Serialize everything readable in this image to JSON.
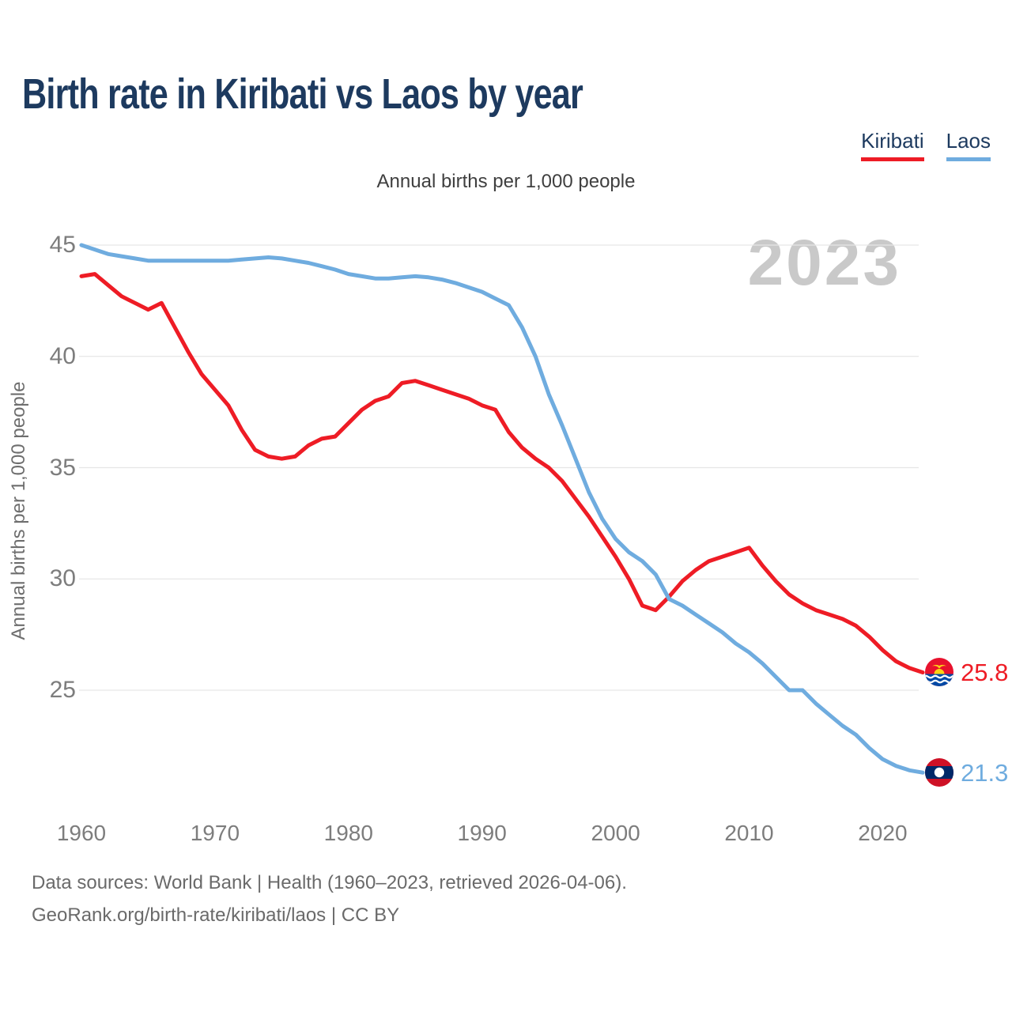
{
  "header": {
    "title": "Birth rate in Kiribati vs Laos by year",
    "legend": [
      {
        "label": "Kiribati",
        "color": "#ee1c25"
      },
      {
        "label": "Laos",
        "color": "#6facdf"
      }
    ]
  },
  "subtitle": "Annual births per 1,000 people",
  "watermark": "2023",
  "footer": {
    "line1": "Data sources: World Bank | Health (1960–2023, retrieved 2026-04-06).",
    "line2": "GeoRank.org/birth-rate/kiribati/laos | CC BY"
  },
  "colors": {
    "kiribati_red": "#ee1c25",
    "laos_blue": "#6facdf",
    "title_navy": "#1d3a5f",
    "tick_gray": "#7d7d7d",
    "grid_gray": "#e6e6e6",
    "watermark_gray": "#c9c9c9"
  },
  "chart_data": {
    "type": "line",
    "title": "Birth rate in Kiribati vs Laos by year",
    "subtitle": "Annual births per 1,000 people",
    "xlabel": "",
    "ylabel": "Annual births per 1,000 people",
    "grid": "horizontal",
    "legend_position": "top-right",
    "watermark": "2023",
    "ylim": [
      20.5,
      46
    ],
    "yticks": [
      25,
      30,
      35,
      40,
      45
    ],
    "xticks": [
      1960,
      1970,
      1980,
      1990,
      2000,
      2010,
      2020
    ],
    "x": [
      1960,
      1961,
      1962,
      1963,
      1964,
      1965,
      1966,
      1967,
      1968,
      1969,
      1970,
      1971,
      1972,
      1973,
      1974,
      1975,
      1976,
      1977,
      1978,
      1979,
      1980,
      1981,
      1982,
      1983,
      1984,
      1985,
      1986,
      1987,
      1988,
      1989,
      1990,
      1991,
      1992,
      1993,
      1994,
      1995,
      1996,
      1997,
      1998,
      1999,
      2000,
      2001,
      2002,
      2003,
      2004,
      2005,
      2006,
      2007,
      2008,
      2009,
      2010,
      2011,
      2012,
      2013,
      2014,
      2015,
      2016,
      2017,
      2018,
      2019,
      2020,
      2021,
      2022,
      2023
    ],
    "series": [
      {
        "name": "Kiribati",
        "color": "#ee1c25",
        "end_label": "25.8",
        "end_value": 25.8,
        "values": [
          43.6,
          43.7,
          43.2,
          42.7,
          42.4,
          42.1,
          42.4,
          41.3,
          40.2,
          39.2,
          38.5,
          37.8,
          36.7,
          35.8,
          35.5,
          35.4,
          35.5,
          36.0,
          36.3,
          36.4,
          37.0,
          37.6,
          38.0,
          38.2,
          38.8,
          38.9,
          38.7,
          38.5,
          38.3,
          38.1,
          37.8,
          37.6,
          36.6,
          35.9,
          35.4,
          35.0,
          34.4,
          33.6,
          32.8,
          31.9,
          31.0,
          30.0,
          28.8,
          28.6,
          29.2,
          29.9,
          30.4,
          30.8,
          31.0,
          31.2,
          31.4,
          30.6,
          29.9,
          29.3,
          28.9,
          28.6,
          28.4,
          28.2,
          27.9,
          27.4,
          26.8,
          26.3,
          26.0,
          25.8
        ]
      },
      {
        "name": "Laos",
        "color": "#6facdf",
        "end_label": "21.3",
        "end_value": 21.3,
        "values": [
          45.0,
          44.8,
          44.6,
          44.5,
          44.4,
          44.3,
          44.3,
          44.3,
          44.3,
          44.3,
          44.3,
          44.3,
          44.35,
          44.4,
          44.45,
          44.4,
          44.3,
          44.2,
          44.05,
          43.9,
          43.7,
          43.6,
          43.5,
          43.5,
          43.55,
          43.6,
          43.55,
          43.45,
          43.3,
          43.1,
          42.9,
          42.6,
          42.3,
          41.3,
          40.0,
          38.3,
          36.9,
          35.4,
          33.9,
          32.7,
          31.8,
          31.2,
          30.8,
          30.2,
          29.1,
          28.8,
          28.4,
          28.0,
          27.6,
          27.1,
          26.7,
          26.2,
          25.6,
          25.0,
          25.0,
          24.4,
          23.9,
          23.4,
          23.0,
          22.4,
          21.9,
          21.6,
          21.4,
          21.3
        ]
      }
    ]
  }
}
